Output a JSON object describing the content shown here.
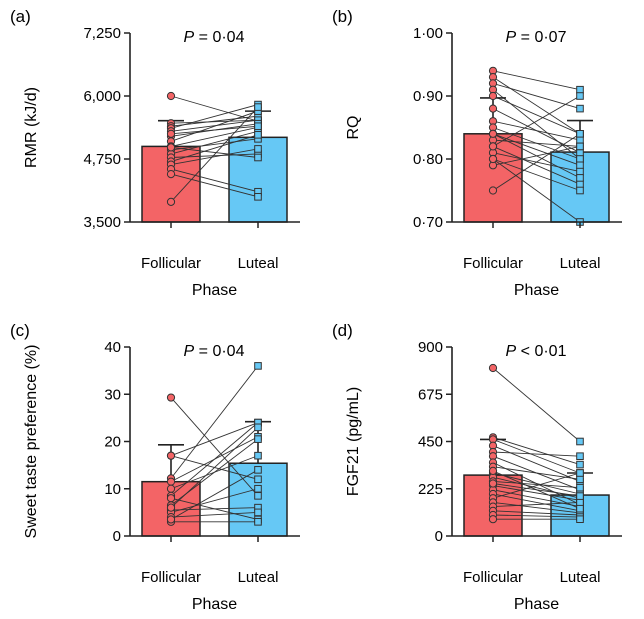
{
  "colors": {
    "follicular": "#f36466",
    "luteal": "#66c8f5",
    "line": "#222222"
  },
  "chart_data": [
    {
      "panel_label": "(a)",
      "type": "bar",
      "categories": [
        "Follicular",
        "Luteal"
      ],
      "xlabel": "Phase",
      "ylabel": "RMR (kJ/d)",
      "p_symbol": "P",
      "p_text": " = 0·04",
      "ylim": [
        3500,
        7250
      ],
      "yticks": [
        "3,500",
        "4,750",
        "6,000",
        "7,250"
      ],
      "ytick_values": [
        3500,
        4750,
        6000,
        7250
      ],
      "means": [
        5000,
        5180
      ],
      "sd": [
        510,
        520
      ],
      "paired_points": [
        [
          6000,
          5500
        ],
        [
          5460,
          5520
        ],
        [
          5400,
          5600
        ],
        [
          5360,
          5830
        ],
        [
          5300,
          5520
        ],
        [
          5200,
          5450
        ],
        [
          5100,
          5700
        ],
        [
          5000,
          5380
        ],
        [
          4930,
          5150
        ],
        [
          4850,
          5300
        ],
        [
          4780,
          4850
        ],
        [
          4700,
          5230
        ],
        [
          4640,
          4950
        ],
        [
          4550,
          4100
        ],
        [
          4450,
          4000
        ],
        [
          3900,
          5780
        ],
        [
          5250,
          5400
        ],
        [
          4980,
          4780
        ]
      ]
    },
    {
      "panel_label": "(b)",
      "type": "bar",
      "categories": [
        "Follicular",
        "Luteal"
      ],
      "xlabel": "Phase",
      "ylabel": "RQ",
      "p_symbol": "P",
      "p_text": " = 0·07",
      "ylim": [
        0.7,
        1.0
      ],
      "yticks": [
        "0·70",
        "0·80",
        "0·90",
        "1·00"
      ],
      "ytick_values": [
        0.7,
        0.8,
        0.9,
        1.0
      ],
      "means": [
        0.84,
        0.811
      ],
      "sd": [
        0.057,
        0.05
      ],
      "paired_points": [
        [
          0.94,
          0.91
        ],
        [
          0.93,
          0.84
        ],
        [
          0.92,
          0.88
        ],
        [
          0.91,
          0.8
        ],
        [
          0.9,
          0.84
        ],
        [
          0.88,
          0.81
        ],
        [
          0.86,
          0.83
        ],
        [
          0.85,
          0.8
        ],
        [
          0.84,
          0.79
        ],
        [
          0.83,
          0.82
        ],
        [
          0.82,
          0.76
        ],
        [
          0.81,
          0.78
        ],
        [
          0.8,
          0.75
        ],
        [
          0.79,
          0.82
        ],
        [
          0.75,
          0.84
        ],
        [
          0.8,
          0.7
        ],
        [
          0.82,
          0.9
        ],
        [
          0.84,
          0.77
        ]
      ]
    },
    {
      "panel_label": "(c)",
      "type": "bar",
      "categories": [
        "Follicular",
        "Luteal"
      ],
      "xlabel": "Phase",
      "ylabel": "Sweet taste preference (%)",
      "p_symbol": "P",
      "p_text": " = 0·04",
      "ylim": [
        0,
        40
      ],
      "yticks": [
        "0",
        "10",
        "20",
        "30",
        "40"
      ],
      "ytick_values": [
        0,
        10,
        20,
        30,
        40
      ],
      "means": [
        11.5,
        15.4
      ],
      "sd": [
        7.8,
        8.8
      ],
      "paired_points": [
        [
          29.3,
          8.5
        ],
        [
          17.0,
          24.0
        ],
        [
          17.0,
          12.0
        ],
        [
          12.2,
          36.0
        ],
        [
          11.5,
          21.0
        ],
        [
          10.0,
          17.0
        ],
        [
          8.5,
          24.0
        ],
        [
          8.0,
          3.5
        ],
        [
          6.5,
          20.5
        ],
        [
          5.5,
          6.0
        ],
        [
          5.0,
          10.0
        ],
        [
          4.0,
          5.0
        ],
        [
          3.0,
          3.0
        ],
        [
          3.5,
          14.0
        ],
        [
          6.0,
          23.0
        ]
      ]
    },
    {
      "panel_label": "(d)",
      "type": "bar",
      "categories": [
        "Follicular",
        "Luteal"
      ],
      "xlabel": "Phase",
      "ylabel": "FGF21 (pg/mL)",
      "p_symbol": "P",
      "p_text": " < 0·01",
      "ylim": [
        0,
        900
      ],
      "yticks": [
        "0",
        "225",
        "450",
        "675",
        "900"
      ],
      "ytick_values": [
        0,
        225,
        450,
        675,
        900
      ],
      "means": [
        290,
        195
      ],
      "sd": [
        170,
        105
      ],
      "paired_points": [
        [
          800,
          450
        ],
        [
          470,
          340
        ],
        [
          460,
          300
        ],
        [
          430,
          260
        ],
        [
          400,
          380
        ],
        [
          380,
          220
        ],
        [
          350,
          150
        ],
        [
          330,
          270
        ],
        [
          300,
          200
        ],
        [
          280,
          180
        ],
        [
          260,
          230
        ],
        [
          240,
          170
        ],
        [
          220,
          140
        ],
        [
          200,
          120
        ],
        [
          180,
          300
        ],
        [
          160,
          110
        ],
        [
          140,
          160
        ],
        [
          120,
          100
        ],
        [
          100,
          90
        ],
        [
          80,
          80
        ],
        [
          310,
          130
        ],
        [
          250,
          190
        ]
      ]
    }
  ]
}
